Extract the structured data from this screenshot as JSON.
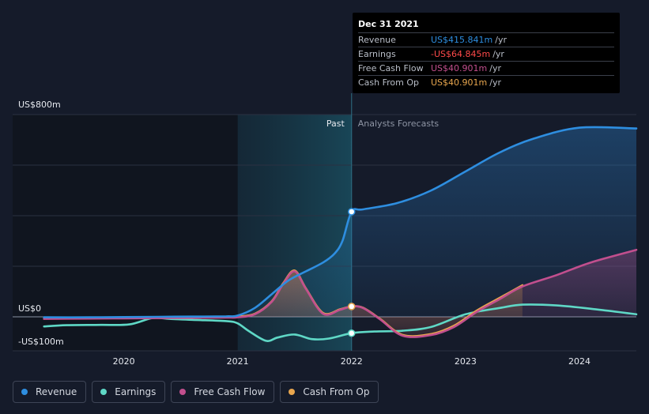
{
  "chart_data": {
    "type": "line",
    "x_range": [
      2019.25,
      2024.5
    ],
    "y_range": [
      -100,
      800
    ],
    "x_ticks": [
      {
        "value": 2020,
        "label": "2020"
      },
      {
        "value": 2021,
        "label": "2021"
      },
      {
        "value": 2022,
        "label": "2022"
      },
      {
        "value": 2023,
        "label": "2023"
      },
      {
        "value": 2024,
        "label": "2024"
      }
    ],
    "y_ticks": [
      {
        "value": 800,
        "label": "US$800m"
      },
      {
        "value": 0,
        "label": "US$0"
      },
      {
        "value": -100,
        "label": "-US$100m"
      }
    ],
    "past_label": "Past",
    "forecast_label": "Analysts Forecasts",
    "highlight_range": [
      2021.0,
      2022.0
    ],
    "divider_x": 2022.0,
    "series": [
      {
        "name": "Revenue",
        "color": "#2e8ee0",
        "fill": true,
        "points": [
          [
            2019.3,
            -2
          ],
          [
            2019.7,
            -2
          ],
          [
            2020.0,
            -1
          ],
          [
            2020.3,
            0
          ],
          [
            2020.6,
            1
          ],
          [
            2020.9,
            2
          ],
          [
            2021.0,
            5
          ],
          [
            2021.15,
            35
          ],
          [
            2021.3,
            90
          ],
          [
            2021.45,
            145
          ],
          [
            2021.6,
            180
          ],
          [
            2021.75,
            215
          ],
          [
            2021.85,
            250
          ],
          [
            2021.92,
            300
          ],
          [
            2022.0,
            415.8
          ],
          [
            2022.1,
            425
          ],
          [
            2022.4,
            450
          ],
          [
            2022.7,
            500
          ],
          [
            2023.0,
            575
          ],
          [
            2023.3,
            650
          ],
          [
            2023.6,
            705
          ],
          [
            2024.0,
            748
          ],
          [
            2024.5,
            745
          ]
        ]
      },
      {
        "name": "Earnings",
        "color": "#5fd8c6",
        "fill": false,
        "points": [
          [
            2019.3,
            -38
          ],
          [
            2019.5,
            -33
          ],
          [
            2019.8,
            -32
          ],
          [
            2020.05,
            -30
          ],
          [
            2020.25,
            -5
          ],
          [
            2020.4,
            -8
          ],
          [
            2020.6,
            -12
          ],
          [
            2020.9,
            -17
          ],
          [
            2021.0,
            -26
          ],
          [
            2021.1,
            -57
          ],
          [
            2021.25,
            -95
          ],
          [
            2021.35,
            -82
          ],
          [
            2021.5,
            -70
          ],
          [
            2021.65,
            -88
          ],
          [
            2021.8,
            -86
          ],
          [
            2022.0,
            -64.8
          ],
          [
            2022.2,
            -58
          ],
          [
            2022.45,
            -55
          ],
          [
            2022.7,
            -40
          ],
          [
            2023.0,
            10
          ],
          [
            2023.3,
            35
          ],
          [
            2023.5,
            48
          ],
          [
            2023.8,
            45
          ],
          [
            2024.1,
            32
          ],
          [
            2024.5,
            10
          ]
        ]
      },
      {
        "name": "Free Cash Flow",
        "color": "#c24f8e",
        "fill": true,
        "points": [
          [
            2019.3,
            -8
          ],
          [
            2019.7,
            -7
          ],
          [
            2020.0,
            -6
          ],
          [
            2020.3,
            -5
          ],
          [
            2020.6,
            -4
          ],
          [
            2020.9,
            -3
          ],
          [
            2021.0,
            -2
          ],
          [
            2021.15,
            10
          ],
          [
            2021.3,
            60
          ],
          [
            2021.4,
            130
          ],
          [
            2021.5,
            180
          ],
          [
            2021.6,
            110
          ],
          [
            2021.75,
            12
          ],
          [
            2021.9,
            28
          ],
          [
            2022.0,
            40.9
          ],
          [
            2022.1,
            35
          ],
          [
            2022.25,
            -10
          ],
          [
            2022.45,
            -75
          ],
          [
            2022.7,
            -72
          ],
          [
            2022.9,
            -40
          ],
          [
            2023.1,
            20
          ],
          [
            2023.3,
            70
          ],
          [
            2023.5,
            120
          ],
          [
            2023.8,
            165
          ],
          [
            2024.1,
            215
          ],
          [
            2024.5,
            265
          ]
        ]
      },
      {
        "name": "Cash From Op",
        "color": "#e8a64e",
        "fill": true,
        "points": [
          [
            2019.3,
            -5
          ],
          [
            2019.7,
            -4
          ],
          [
            2020.0,
            -3
          ],
          [
            2020.3,
            -2
          ],
          [
            2020.6,
            -1
          ],
          [
            2020.9,
            0
          ],
          [
            2021.0,
            1
          ],
          [
            2021.15,
            12
          ],
          [
            2021.3,
            62
          ],
          [
            2021.4,
            133
          ],
          [
            2021.5,
            183
          ],
          [
            2021.6,
            112
          ],
          [
            2021.75,
            15
          ],
          [
            2021.9,
            30
          ],
          [
            2022.0,
            40.9
          ],
          [
            2022.1,
            36
          ],
          [
            2022.25,
            -8
          ],
          [
            2022.45,
            -72
          ],
          [
            2022.7,
            -68
          ],
          [
            2022.9,
            -35
          ],
          [
            2023.1,
            25
          ],
          [
            2023.3,
            75
          ],
          [
            2023.5,
            125
          ]
        ]
      }
    ],
    "markers": [
      {
        "series": "Revenue",
        "x": 2022.0,
        "y": 415.8,
        "color": "#2e8ee0"
      },
      {
        "series": "Cash From Op",
        "x": 2022.0,
        "y": 40.9,
        "color": "#e8a64e"
      },
      {
        "series": "Earnings",
        "x": 2022.0,
        "y": -64.8,
        "color": "#5fd8c6"
      }
    ]
  },
  "tooltip": {
    "date": "Dec 31 2021",
    "rows": [
      {
        "label": "Revenue",
        "value": "US$415.841m",
        "unit": "/yr",
        "color": "#2e8ee0"
      },
      {
        "label": "Earnings",
        "value": "-US$64.845m",
        "unit": "/yr",
        "color": "#ff4a4a"
      },
      {
        "label": "Free Cash Flow",
        "value": "US$40.901m",
        "unit": "/yr",
        "color": "#c24f8e"
      },
      {
        "label": "Cash From Op",
        "value": "US$40.901m",
        "unit": "/yr",
        "color": "#e8a64e"
      }
    ]
  },
  "legend": [
    {
      "label": "Revenue",
      "color": "#2e8ee0"
    },
    {
      "label": "Earnings",
      "color": "#5fd8c6"
    },
    {
      "label": "Free Cash Flow",
      "color": "#c24f8e"
    },
    {
      "label": "Cash From Op",
      "color": "#e8a64e"
    }
  ]
}
